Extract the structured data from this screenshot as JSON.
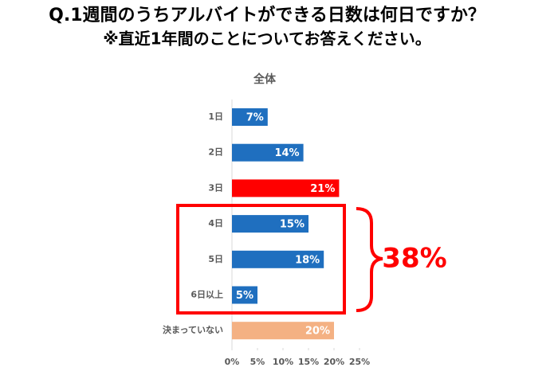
{
  "chart_data": {
    "type": "barh",
    "title": "Q.1週間のうちアルバイトができる日数は何日ですか？",
    "subtitle": "※直近1年間のことについてお答えください。",
    "chart_title": "全体",
    "categories": [
      "1日",
      "2日",
      "3日",
      "4日",
      "5日",
      "6日以上",
      "決まっていない"
    ],
    "values": [
      7,
      14,
      21,
      15,
      18,
      5,
      20
    ],
    "value_labels": [
      "7%",
      "14%",
      "21%",
      "15%",
      "18%",
      "5%",
      "20%"
    ],
    "colors": [
      "#1f6fbf",
      "#1f6fbf",
      "#ff0000",
      "#1f6fbf",
      "#1f6fbf",
      "#1f6fbf",
      "#f4b183"
    ],
    "xlim": [
      0,
      25
    ],
    "xticks": [
      {
        "value": 0,
        "label": "0%"
      },
      {
        "value": 5,
        "label": "5%"
      },
      {
        "value": 10,
        "label": "10%"
      },
      {
        "value": 15,
        "label": "15%"
      },
      {
        "value": 20,
        "label": "20%"
      },
      {
        "value": 25,
        "label": "25%"
      }
    ],
    "annotation": "38%"
  }
}
